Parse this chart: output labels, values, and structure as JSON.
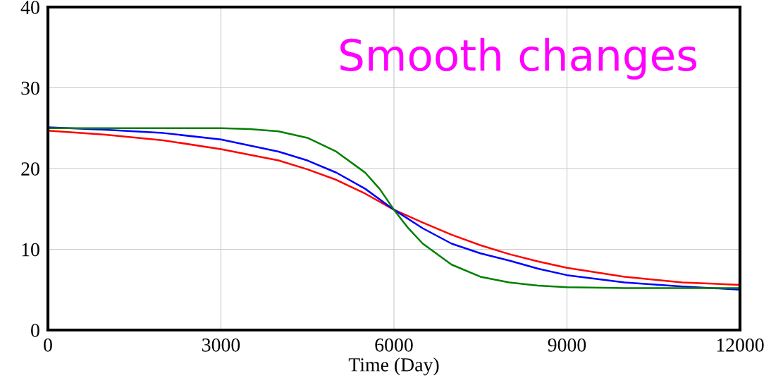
{
  "chart_data": {
    "type": "line",
    "xlabel": "Time (Day)",
    "annotations": [
      "Smooth changes"
    ],
    "xlim": [
      0,
      12000
    ],
    "xticks": [
      0,
      3000,
      6000,
      9000,
      12000
    ],
    "ylim": [
      0,
      40
    ],
    "yticks": [
      0,
      10,
      20,
      30,
      40
    ],
    "grid": true,
    "series": [
      {
        "color": "#ff0000",
        "x": [
          0,
          1000,
          2000,
          3000,
          4000,
          4500,
          5000,
          5500,
          6000,
          6500,
          7000,
          7500,
          8000,
          8500,
          9000,
          10000,
          11000,
          12000
        ],
        "values": [
          24.7,
          24.2,
          23.5,
          22.4,
          21,
          19.9,
          18.6,
          16.9,
          14.9,
          13.3,
          11.8,
          10.5,
          9.4,
          8.5,
          7.7,
          6.6,
          5.9,
          5.6
        ]
      },
      {
        "color": "#0000ff",
        "x": [
          0,
          1000,
          2000,
          3000,
          4000,
          4500,
          5000,
          5500,
          6000,
          6500,
          7000,
          7500,
          8000,
          8500,
          9000,
          10000,
          11000,
          12000
        ],
        "values": [
          25.1,
          24.8,
          24.4,
          23.6,
          22.1,
          21,
          19.5,
          17.5,
          14.9,
          12.6,
          10.7,
          9.5,
          8.6,
          7.6,
          6.8,
          5.9,
          5.4,
          5
        ]
      },
      {
        "color": "#008000",
        "x": [
          0,
          1000,
          2000,
          3000,
          3500,
          4000,
          4500,
          5000,
          5500,
          5750,
          6000,
          6250,
          6500,
          7000,
          7500,
          8000,
          8500,
          9000,
          10000,
          11000,
          12000
        ],
        "values": [
          25,
          25,
          25,
          25,
          24.9,
          24.6,
          23.8,
          22.1,
          19.5,
          17.5,
          14.9,
          12.6,
          10.7,
          8.1,
          6.6,
          5.9,
          5.5,
          5.3,
          5.2,
          5.2,
          5.2
        ]
      }
    ]
  }
}
